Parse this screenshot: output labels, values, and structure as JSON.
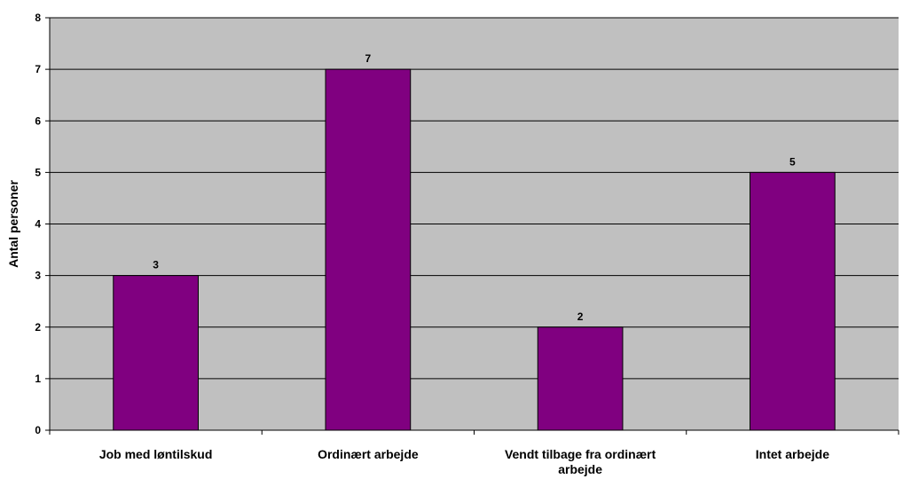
{
  "chart_data": {
    "type": "bar",
    "categories": [
      "Job med løntilskud",
      "Ordinært arbejde",
      "Vendt tilbage fra ordinært arbejde",
      "Intet arbejde"
    ],
    "category_lines": [
      [
        "Job med løntilskud"
      ],
      [
        "Ordinært arbejde"
      ],
      [
        "Vendt tilbage fra ordinært",
        "arbejde"
      ],
      [
        "Intet arbejde"
      ]
    ],
    "values": [
      3,
      7,
      2,
      5
    ],
    "data_labels": [
      "3",
      "7",
      "2",
      "5"
    ],
    "ylabel": "Antal personer",
    "xlabel": "",
    "title": "",
    "ylim": [
      0,
      8
    ],
    "yticks": [
      0,
      1,
      2,
      3,
      4,
      5,
      6,
      7,
      8
    ],
    "grid": true,
    "legend": "none",
    "colors": {
      "bar": "#800080",
      "plot_background": "#c0c0c0",
      "gridline": "#000000"
    }
  }
}
